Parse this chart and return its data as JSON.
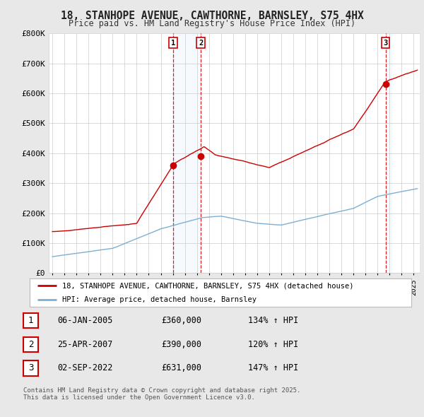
{
  "title": "18, STANHOPE AVENUE, CAWTHORNE, BARNSLEY, S75 4HX",
  "subtitle": "Price paid vs. HM Land Registry's House Price Index (HPI)",
  "background_color": "#e8e8e8",
  "plot_bg_color": "#ffffff",
  "red_line_color": "#cc0000",
  "blue_line_color": "#7ab0d4",
  "sale_marker_color": "#cc0000",
  "vline_color": "#cc0000",
  "shade_color": "#ddeeff",
  "legend_entries": [
    "18, STANHOPE AVENUE, CAWTHORNE, BARNSLEY, S75 4HX (detached house)",
    "HPI: Average price, detached house, Barnsley"
  ],
  "table_rows": [
    {
      "num": "1",
      "date": "06-JAN-2005",
      "price": "£360,000",
      "hpi": "134% ↑ HPI"
    },
    {
      "num": "2",
      "date": "25-APR-2007",
      "price": "£390,000",
      "hpi": "120% ↑ HPI"
    },
    {
      "num": "3",
      "date": "02-SEP-2022",
      "price": "£631,000",
      "hpi": "147% ↑ HPI"
    }
  ],
  "footer": "Contains HM Land Registry data © Crown copyright and database right 2025.\nThis data is licensed under the Open Government Licence v3.0.",
  "ylim": [
    0,
    800000
  ],
  "yticks": [
    0,
    100000,
    200000,
    300000,
    400000,
    500000,
    600000,
    700000,
    800000
  ],
  "ytick_labels": [
    "£0",
    "£100K",
    "£200K",
    "£300K",
    "£400K",
    "£500K",
    "£600K",
    "£700K",
    "£800K"
  ],
  "xlim_start": 1994.7,
  "xlim_end": 2025.5,
  "sale_dates": [
    2005.03,
    2007.32,
    2022.67
  ],
  "sale_prices": [
    360000,
    390000,
    631000
  ],
  "sale_labels": [
    "1",
    "2",
    "3"
  ]
}
